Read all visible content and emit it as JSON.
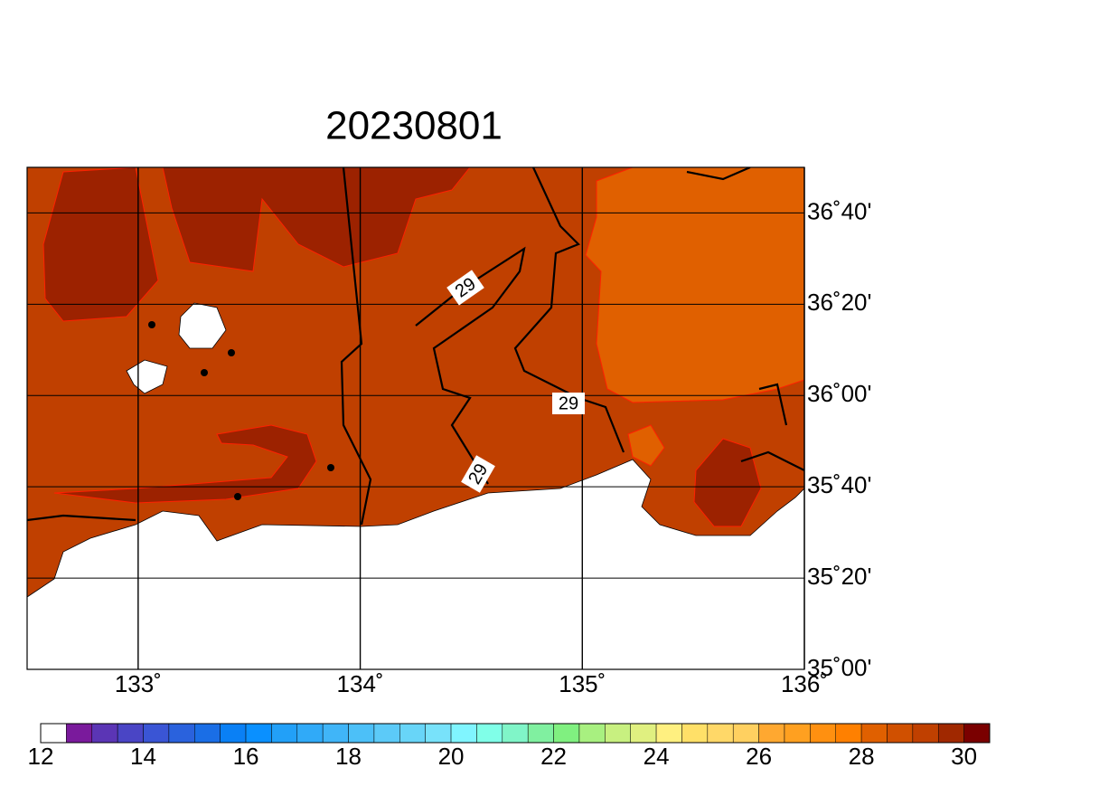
{
  "chart_data": {
    "type": "map",
    "title": "20230801",
    "xlim": [
      132.5,
      136
    ],
    "ylim": [
      35,
      36.8333
    ],
    "xticks": [
      {
        "value": 133,
        "label": "133˚"
      },
      {
        "value": 134,
        "label": "134˚"
      },
      {
        "value": 135,
        "label": "135˚"
      },
      {
        "value": 136,
        "label": "136˚"
      }
    ],
    "yticks": [
      {
        "value": 35,
        "label": "35˚00'"
      },
      {
        "value": 35.3333,
        "label": "35˚20'"
      },
      {
        "value": 35.6667,
        "label": "35˚40'"
      },
      {
        "value": 36,
        "label": "36˚00'"
      },
      {
        "value": 36.3333,
        "label": "36˚20'"
      },
      {
        "value": 36.6667,
        "label": "36˚40'"
      }
    ],
    "grid": true,
    "contour_labels": [
      "29",
      "29",
      "29"
    ],
    "colorbar": {
      "lim": [
        12,
        30.5
      ],
      "ticks": [
        12,
        14,
        16,
        18,
        20,
        22,
        24,
        26,
        28,
        30
      ],
      "colors": [
        "#ffffff",
        "#7a1a9c",
        "#5b35b5",
        "#4a45c5",
        "#3a55d5",
        "#2a62dd",
        "#1a6ee6",
        "#0a80f5",
        "#0a90ff",
        "#22a0f8",
        "#30aaf8",
        "#40b5f8",
        "#4cc0f8",
        "#5ccaf8",
        "#68d5f8",
        "#78e2fa",
        "#80f5ff",
        "#80ffe8",
        "#80f5c8",
        "#80f0a0",
        "#80f080",
        "#a8f080",
        "#c8f080",
        "#e0f080",
        "#fff080",
        "#ffe068",
        "#ffd868",
        "#ffd060",
        "#ffa830",
        "#ffa020",
        "#ff9010",
        "#ff8000",
        "#e06000",
        "#d05000",
        "#c04000",
        "#a02800",
        "#7a0000"
      ]
    }
  }
}
